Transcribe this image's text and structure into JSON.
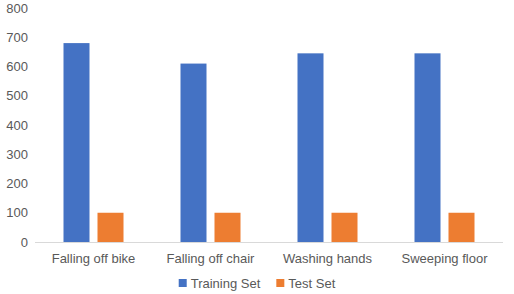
{
  "chart_data": {
    "type": "bar",
    "categories": [
      "Falling off bike",
      "Falling off chair",
      "Washing hands",
      "Sweeping floor"
    ],
    "series": [
      {
        "name": "Training Set",
        "color": "#4472c4",
        "values": [
          680,
          610,
          645,
          645
        ]
      },
      {
        "name": "Test Set",
        "color": "#ed7d31",
        "values": [
          100,
          100,
          100,
          100
        ]
      }
    ],
    "ylim": [
      0,
      800
    ],
    "yticks": [
      0,
      100,
      200,
      300,
      400,
      500,
      600,
      700,
      800
    ],
    "grid": false,
    "legend": "bottom"
  }
}
